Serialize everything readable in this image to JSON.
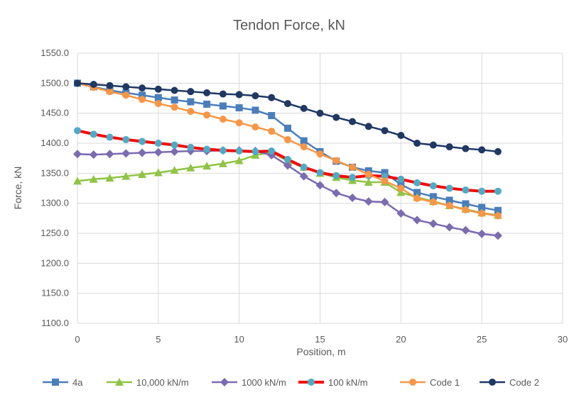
{
  "chart_data": {
    "type": "line",
    "title": "Tendon Force, kN",
    "xlabel": "Position, m",
    "ylabel": "Force, kN",
    "xlim": [
      0,
      30
    ],
    "ylim": [
      1100,
      1550
    ],
    "xticks": [
      0,
      5,
      10,
      15,
      20,
      25,
      30
    ],
    "yticks": [
      1100,
      1150,
      1200,
      1250,
      1300,
      1350,
      1400,
      1450,
      1500,
      1550
    ],
    "ytick_labels": [
      "1100.0",
      "1150.0",
      "1200.0",
      "1250.0",
      "1300.0",
      "1350.0",
      "1400.0",
      "1450.0",
      "1500.0",
      "1550.0"
    ],
    "grid": true,
    "legend_position": "bottom",
    "x": [
      0,
      1,
      2,
      3,
      4,
      5,
      6,
      7,
      8,
      9,
      10,
      11,
      12,
      13,
      14,
      15,
      16,
      17,
      18,
      19,
      20,
      21,
      22,
      23,
      24,
      25,
      26
    ],
    "series": [
      {
        "name": "4a",
        "color": "#4a7ebb",
        "marker": "square",
        "line_width": 2.5,
        "values": [
          1500,
          1494,
          1488,
          1484,
          1480,
          1476,
          1472,
          1469,
          1465,
          1462,
          1459,
          1455,
          1446,
          1425,
          1404,
          1386,
          1370,
          1360,
          1354,
          1351,
          1331,
          1318,
          1311,
          1305,
          1299,
          1293,
          1288
        ]
      },
      {
        "name": "10,000 kN/m",
        "color": "#8fc444",
        "marker": "triangle",
        "line_width": 2.5,
        "values": [
          1337,
          1340,
          1342,
          1345,
          1348,
          1351,
          1355,
          1359,
          1362,
          1366,
          1371,
          1380,
          1385,
          1370,
          1360,
          1350,
          1343,
          1338,
          1335,
          1335,
          1318,
          1310,
          1303,
          1296,
          1290,
          1284,
          1280
        ]
      },
      {
        "name": "1000 kN/m",
        "color": "#7b6bb0",
        "marker": "diamond",
        "line_width": 2.5,
        "values": [
          1382,
          1381,
          1382,
          1383,
          1384,
          1385,
          1386,
          1387,
          1387,
          1388,
          1388,
          1387,
          1380,
          1363,
          1345,
          1330,
          1317,
          1309,
          1303,
          1302,
          1283,
          1272,
          1266,
          1260,
          1255,
          1249,
          1246
        ]
      },
      {
        "name": "100 kN/m",
        "color": "#ff0000",
        "marker": "circle",
        "marker_color": "#4bacc6",
        "line_width": 4,
        "values": [
          1421,
          1415,
          1410,
          1406,
          1403,
          1400,
          1397,
          1393,
          1390,
          1388,
          1387,
          1386,
          1387,
          1373,
          1360,
          1351,
          1346,
          1343,
          1346,
          1345,
          1340,
          1334,
          1329,
          1325,
          1322,
          1320,
          1320
        ]
      },
      {
        "name": "Code 1",
        "color": "#f79646",
        "marker": "circle",
        "line_width": 2.5,
        "values": [
          1500,
          1493,
          1486,
          1480,
          1473,
          1466,
          1460,
          1453,
          1447,
          1440,
          1434,
          1427,
          1420,
          1406,
          1394,
          1382,
          1371,
          1360,
          1348,
          1337,
          1325,
          1308,
          1302,
          1296,
          1289,
          1283,
          1279
        ]
      },
      {
        "name": "Code 2",
        "color": "#1f3864",
        "marker": "circle",
        "line_width": 2.5,
        "values": [
          1500,
          1498,
          1496,
          1494,
          1492,
          1490,
          1488,
          1486,
          1484,
          1482,
          1481,
          1479,
          1476,
          1466,
          1458,
          1450,
          1443,
          1436,
          1428,
          1421,
          1413,
          1400,
          1397,
          1394,
          1391,
          1389,
          1386
        ]
      }
    ]
  }
}
